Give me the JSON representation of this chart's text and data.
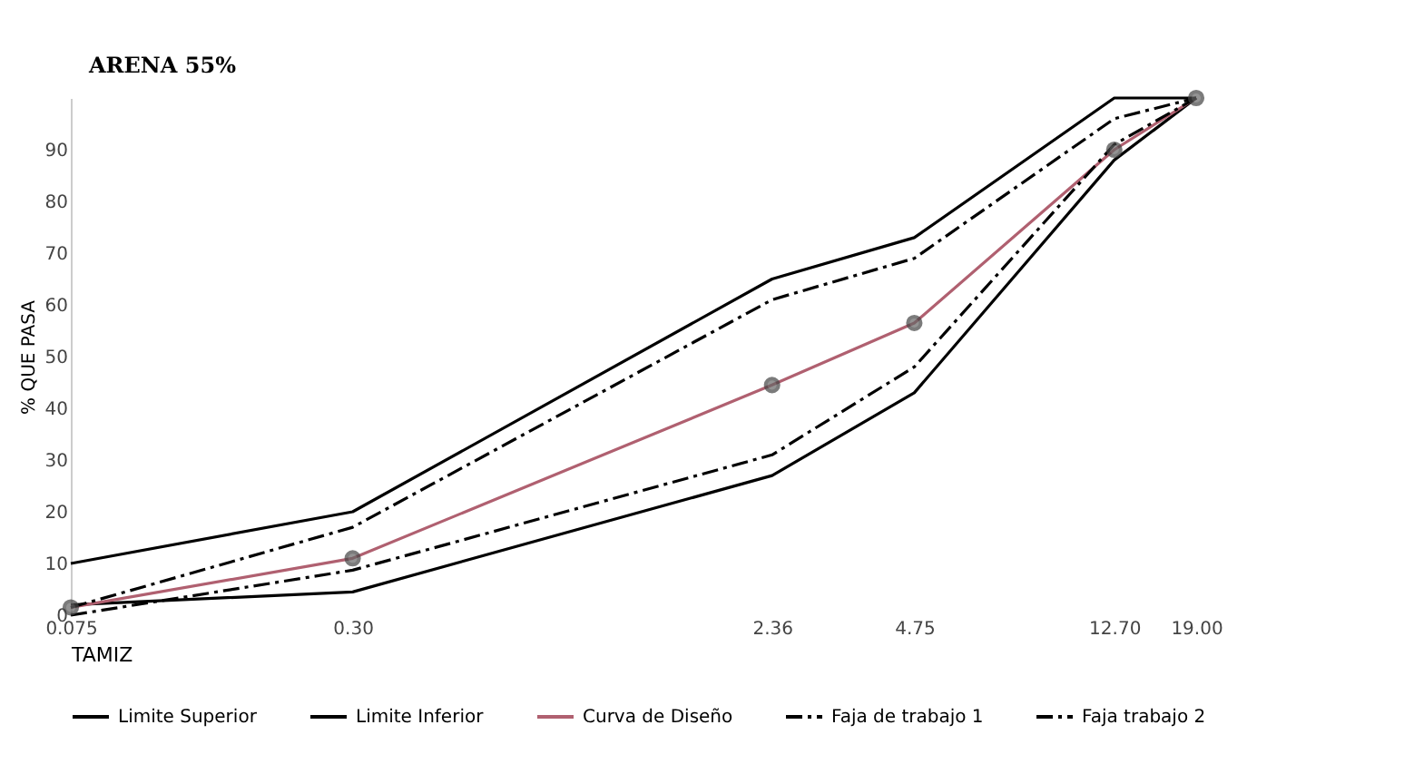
{
  "chart_data": {
    "type": "line",
    "xlabel": "TAMIZ",
    "ylabel": "% QUE PASA",
    "annotations": [
      "ARENA 55%"
    ],
    "log": "x",
    "x": [
      0.075,
      0.3,
      2.36,
      4.75,
      12.7,
      19.0
    ],
    "xlim": [
      0.075,
      19.0
    ],
    "xticks": [
      0.075,
      {
        "value": 0.3,
        "label": "0.30"
      },
      2.36,
      4.75,
      {
        "value": 12.7,
        "label": "12.70"
      },
      {
        "value": 19.0,
        "label": "19.00"
      }
    ],
    "ylim": [
      0,
      100
    ],
    "yticks": [
      0,
      10,
      20,
      30,
      40,
      50,
      60,
      70,
      80,
      90
    ],
    "grid": false,
    "legend": "bottom",
    "series": [
      {
        "name": "Limite Superior",
        "color": "#000000",
        "line_style": "solid",
        "marker": "none",
        "values": [
          10,
          20,
          65,
          73,
          100,
          100
        ]
      },
      {
        "name": "Limite Inferior",
        "color": "#000000",
        "line_style": "solid",
        "marker": "none",
        "values": [
          2,
          4.5,
          27,
          43,
          88,
          100
        ]
      },
      {
        "name": "Curva de Diseño",
        "color": "#b06070",
        "line_style": "solid",
        "marker": "circle",
        "values": [
          1.5,
          11,
          44.5,
          56.5,
          90,
          100
        ]
      },
      {
        "name": "Faja de trabajo 1",
        "color": "#000000",
        "line_style": "dashed",
        "marker": "none",
        "values": [
          1.5,
          17,
          61,
          69,
          96,
          100
        ]
      },
      {
        "name": "Faja trabajo 2",
        "color": "#000000",
        "line_style": "dashed",
        "marker": "none",
        "values": [
          0,
          8.7,
          31,
          48,
          91,
          100
        ]
      }
    ]
  }
}
